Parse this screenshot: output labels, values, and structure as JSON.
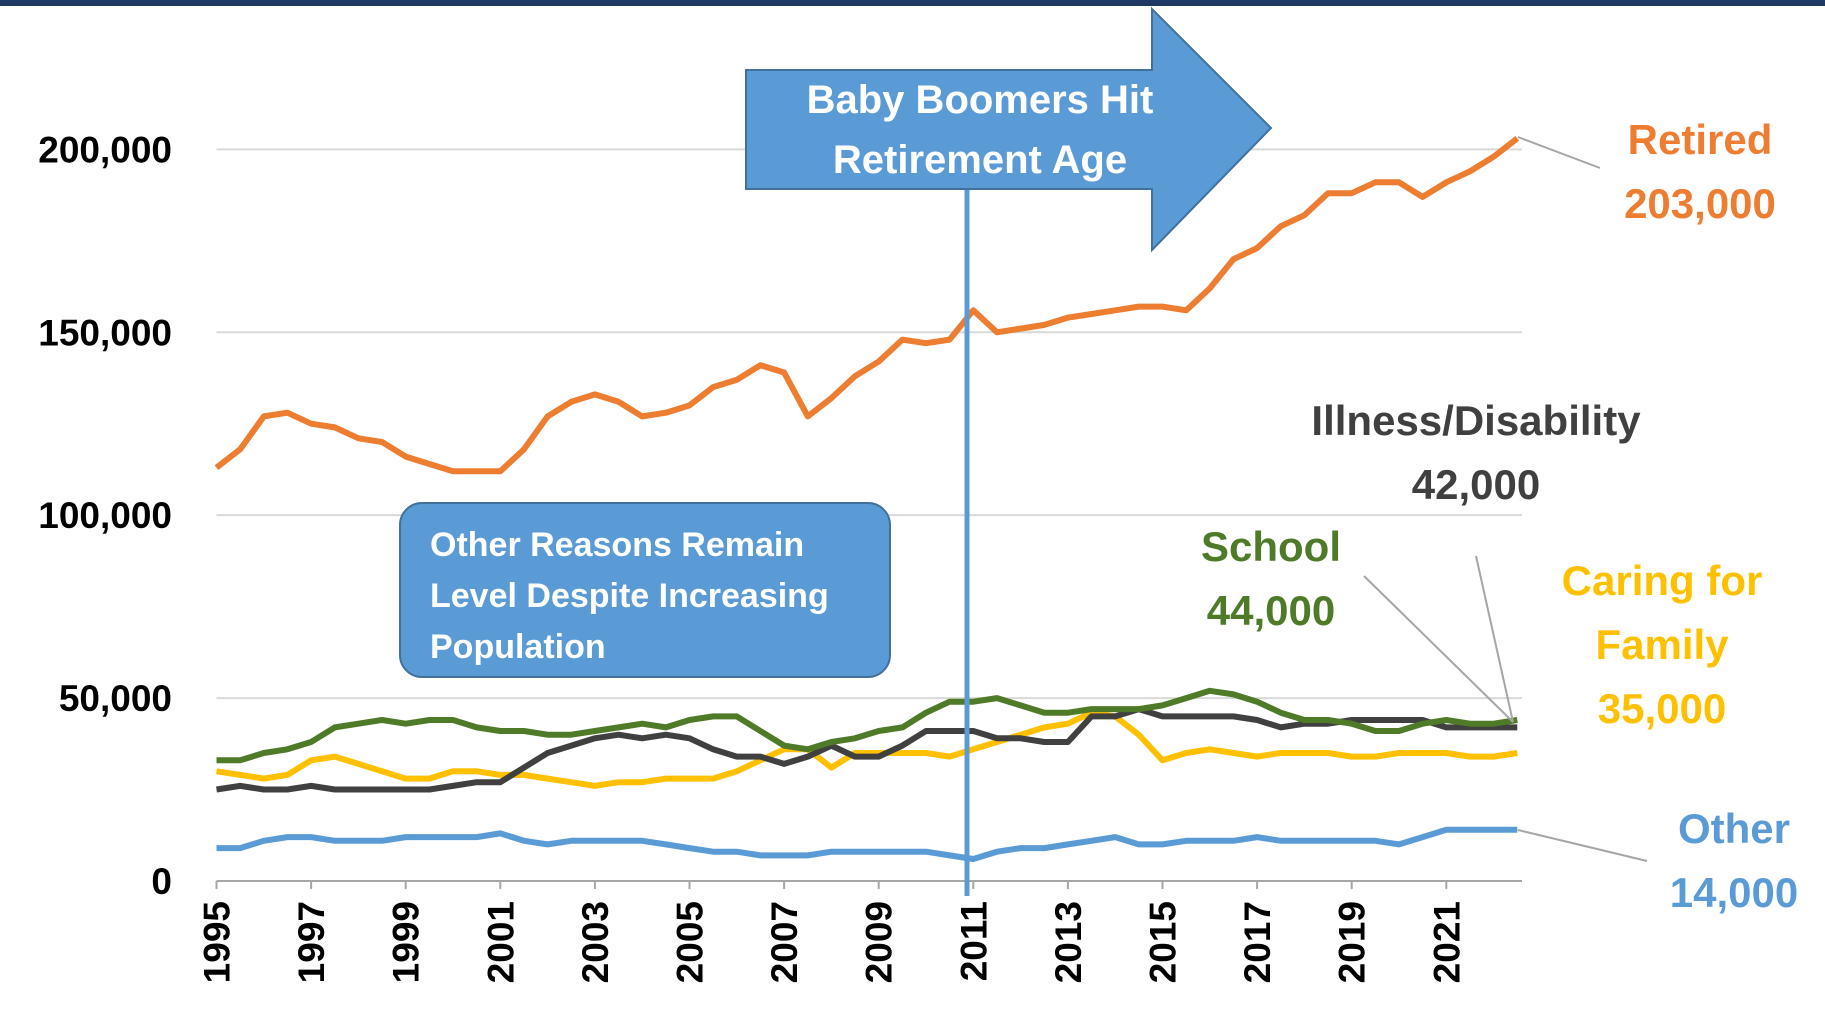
{
  "chart_data": {
    "type": "line",
    "x": [
      1995,
      1995.5,
      1996,
      1996.5,
      1997,
      1997.5,
      1998,
      1998.5,
      1999,
      1999.5,
      2000,
      2000.5,
      2001,
      2001.5,
      2002,
      2002.5,
      2003,
      2003.5,
      2004,
      2004.5,
      2005,
      2005.5,
      2006,
      2006.5,
      2007,
      2007.5,
      2008,
      2008.5,
      2009,
      2009.5,
      2010,
      2010.5,
      2011,
      2011.5,
      2012,
      2012.5,
      2013,
      2013.5,
      2014,
      2014.5,
      2015,
      2015.5,
      2016,
      2016.5,
      2017,
      2017.5,
      2018,
      2018.5,
      2019,
      2019.5,
      2020,
      2020.5,
      2021,
      2021.5,
      2022,
      2022.5
    ],
    "xlim": [
      1995,
      2022.6
    ],
    "xticks": [
      1995,
      1997,
      1999,
      2001,
      2003,
      2005,
      2007,
      2009,
      2011,
      2013,
      2015,
      2017,
      2019,
      2021
    ],
    "ylim": [
      0,
      240000
    ],
    "yticks": [
      0,
      {
        "value": 50000,
        "label": "50,000"
      },
      {
        "value": 100000,
        "label": "100,000"
      },
      {
        "value": 150000,
        "label": "150,000"
      },
      {
        "value": 200000,
        "label": "200,000"
      }
    ],
    "grid": true,
    "series": [
      {
        "name": "Retired",
        "color": "#ed7d31",
        "end_label": "203,000",
        "values": [
          113000,
          118000,
          127000,
          128000,
          125000,
          124000,
          121000,
          120000,
          116000,
          114000,
          112000,
          112000,
          112000,
          118000,
          127000,
          131000,
          133000,
          131000,
          127000,
          128000,
          130000,
          135000,
          137000,
          141000,
          139000,
          127000,
          132000,
          138000,
          142000,
          148000,
          147000,
          148000,
          156000,
          150000,
          151000,
          152000,
          154000,
          155000,
          156000,
          157000,
          157000,
          156000,
          162000,
          170000,
          173000,
          179000,
          182000,
          188000,
          188000,
          191000,
          191000,
          187000,
          191000,
          194000,
          198000,
          203000
        ]
      },
      {
        "name": "School",
        "color": "#4f7a28",
        "end_label": "44,000",
        "values": [
          33000,
          33000,
          35000,
          36000,
          38000,
          42000,
          43000,
          44000,
          43000,
          44000,
          44000,
          42000,
          41000,
          41000,
          40000,
          40000,
          41000,
          42000,
          43000,
          42000,
          44000,
          45000,
          45000,
          41000,
          37000,
          36000,
          38000,
          39000,
          41000,
          42000,
          46000,
          49000,
          49000,
          50000,
          48000,
          46000,
          46000,
          47000,
          47000,
          47000,
          48000,
          50000,
          52000,
          51000,
          49000,
          46000,
          44000,
          44000,
          43000,
          41000,
          41000,
          43000,
          44000,
          43000,
          43000,
          44000
        ]
      },
      {
        "name": "Illness/Disability",
        "color": "#404040",
        "end_label": "42,000",
        "values": [
          25000,
          26000,
          25000,
          25000,
          26000,
          25000,
          25000,
          25000,
          25000,
          25000,
          26000,
          27000,
          27000,
          31000,
          35000,
          37000,
          39000,
          40000,
          39000,
          40000,
          39000,
          36000,
          34000,
          34000,
          32000,
          34000,
          37000,
          34000,
          34000,
          37000,
          41000,
          41000,
          41000,
          39000,
          39000,
          38000,
          38000,
          45000,
          45000,
          47000,
          45000,
          45000,
          45000,
          45000,
          44000,
          42000,
          43000,
          43000,
          44000,
          44000,
          44000,
          44000,
          42000,
          42000,
          42000,
          42000
        ]
      },
      {
        "name": "Caring for Family",
        "color": "#ffc000",
        "end_label": "35,000",
        "values": [
          30000,
          29000,
          28000,
          29000,
          33000,
          34000,
          32000,
          30000,
          28000,
          28000,
          30000,
          30000,
          29000,
          29000,
          28000,
          27000,
          26000,
          27000,
          27000,
          28000,
          28000,
          28000,
          30000,
          33000,
          36000,
          36000,
          31000,
          35000,
          35000,
          35000,
          35000,
          34000,
          36000,
          38000,
          40000,
          42000,
          43000,
          46000,
          45000,
          40000,
          33000,
          35000,
          36000,
          35000,
          34000,
          35000,
          35000,
          35000,
          34000,
          34000,
          35000,
          35000,
          35000,
          34000,
          34000,
          35000
        ]
      },
      {
        "name": "Other",
        "color": "#5b9bd5",
        "end_label": "14,000",
        "values": [
          9000,
          9000,
          11000,
          12000,
          12000,
          11000,
          11000,
          11000,
          12000,
          12000,
          12000,
          12000,
          13000,
          11000,
          10000,
          11000,
          11000,
          11000,
          11000,
          10000,
          9000,
          8000,
          8000,
          7000,
          7000,
          7000,
          8000,
          8000,
          8000,
          8000,
          8000,
          7000,
          6000,
          8000,
          9000,
          9000,
          10000,
          11000,
          12000,
          10000,
          10000,
          11000,
          11000,
          11000,
          12000,
          11000,
          11000,
          11000,
          11000,
          11000,
          10000,
          12000,
          14000,
          14000,
          14000,
          14000
        ]
      }
    ],
    "annotations": {
      "arrow_text": "Baby Boomers Hit Retirement Age",
      "box_text": "Other Reasons Remain Level Despite Increasing Population"
    }
  }
}
